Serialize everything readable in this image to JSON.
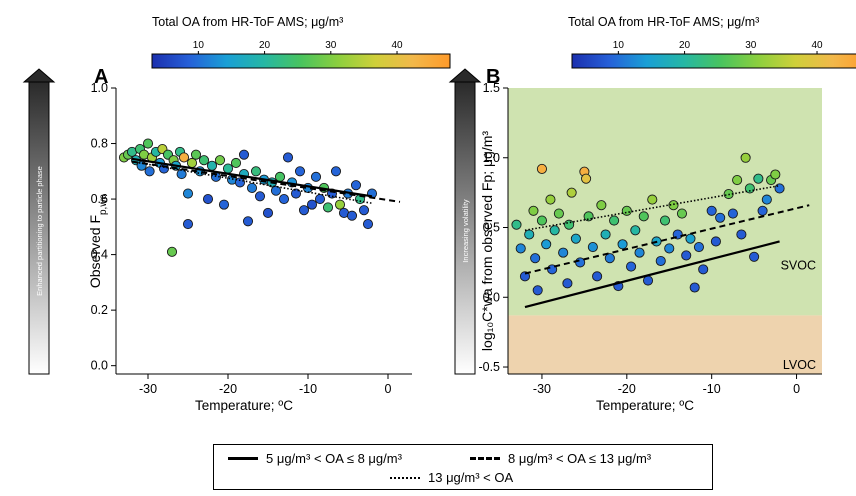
{
  "colorbar_title": "Total OA from HR-ToF AMS; μg/m³",
  "colorbar_ticks": [
    10,
    20,
    30,
    40
  ],
  "colorbar_range": [
    3,
    48
  ],
  "colorbar_colors": [
    "#1b2fae",
    "#2660d8",
    "#1a9fd6",
    "#25b7a5",
    "#49c45e",
    "#8ccf3e",
    "#cfcf3a",
    "#f2b84a",
    "#ff9a2a"
  ],
  "panel_b_colors": {
    "svoc_fill": "#cfe3b0",
    "lvoc_fill": "#eed3ae"
  },
  "legend": {
    "solid_label": "5 μg/m³ < OA ≤ 8 μg/m³",
    "dashed_label": "8 μg/m³ < OA ≤ 13 μg/m³",
    "dotdash_label": "13 μg/m³ < OA"
  },
  "chart_data": [
    {
      "type": "scatter",
      "panel_label": "A",
      "title": "",
      "xlabel": "Temperature; ºC",
      "ylabel": "Observed F",
      "ylabel_sub": "p,wa",
      "arrow_label": "Enhanced partitioning to particle phase",
      "xlim": [
        -34,
        3
      ],
      "ylim": [
        -0.03,
        1.0
      ],
      "xticks": [
        -30,
        -20,
        -10,
        0
      ],
      "yticks": [
        0.0,
        0.2,
        0.4,
        0.6,
        0.8,
        1.0
      ],
      "ytick_labels": [
        "0.0",
        "0.2",
        "0.4",
        "0.6",
        "0.8",
        "1.0"
      ],
      "lines": [
        {
          "style": "solid",
          "x": [
            -32,
            -2
          ],
          "y": [
            0.745,
            0.61
          ]
        },
        {
          "style": "dashed",
          "x": [
            -32,
            1.5
          ],
          "y": [
            0.735,
            0.59
          ]
        },
        {
          "style": "dotdash",
          "x": [
            -32,
            -2
          ],
          "y": [
            0.735,
            0.585
          ]
        }
      ],
      "points": [
        {
          "x": -33,
          "y": 0.75,
          "c": 30
        },
        {
          "x": -32.5,
          "y": 0.76,
          "c": 28
        },
        {
          "x": -32,
          "y": 0.77,
          "c": 22
        },
        {
          "x": -31.5,
          "y": 0.74,
          "c": 18
        },
        {
          "x": -31,
          "y": 0.78,
          "c": 24
        },
        {
          "x": -30.8,
          "y": 0.72,
          "c": 12
        },
        {
          "x": -30.5,
          "y": 0.76,
          "c": 30
        },
        {
          "x": -30,
          "y": 0.8,
          "c": 26
        },
        {
          "x": -29.8,
          "y": 0.7,
          "c": 10
        },
        {
          "x": -29.5,
          "y": 0.75,
          "c": 33
        },
        {
          "x": -29,
          "y": 0.77,
          "c": 20
        },
        {
          "x": -28.5,
          "y": 0.73,
          "c": 14
        },
        {
          "x": -28.2,
          "y": 0.78,
          "c": 35
        },
        {
          "x": -28,
          "y": 0.71,
          "c": 9
        },
        {
          "x": -27.5,
          "y": 0.76,
          "c": 25
        },
        {
          "x": -27,
          "y": 0.41,
          "c": 28
        },
        {
          "x": -26.8,
          "y": 0.74,
          "c": 30
        },
        {
          "x": -26.5,
          "y": 0.72,
          "c": 16
        },
        {
          "x": -26,
          "y": 0.77,
          "c": 22
        },
        {
          "x": -25.8,
          "y": 0.69,
          "c": 11
        },
        {
          "x": -25.5,
          "y": 0.75,
          "c": 44
        },
        {
          "x": -25,
          "y": 0.62,
          "c": 12
        },
        {
          "x": -25,
          "y": 0.51,
          "c": 8
        },
        {
          "x": -24.5,
          "y": 0.73,
          "c": 33
        },
        {
          "x": -24,
          "y": 0.76,
          "c": 27
        },
        {
          "x": -23.5,
          "y": 0.7,
          "c": 13
        },
        {
          "x": -23,
          "y": 0.74,
          "c": 24
        },
        {
          "x": -22.5,
          "y": 0.6,
          "c": 7
        },
        {
          "x": -22,
          "y": 0.72,
          "c": 19
        },
        {
          "x": -21.5,
          "y": 0.68,
          "c": 10
        },
        {
          "x": -21,
          "y": 0.74,
          "c": 29
        },
        {
          "x": -20.5,
          "y": 0.58,
          "c": 9
        },
        {
          "x": -20,
          "y": 0.71,
          "c": 21
        },
        {
          "x": -19.5,
          "y": 0.67,
          "c": 12
        },
        {
          "x": -19,
          "y": 0.73,
          "c": 26
        },
        {
          "x": -18.5,
          "y": 0.66,
          "c": 9
        },
        {
          "x": -18,
          "y": 0.76,
          "c": 8
        },
        {
          "x": -18,
          "y": 0.69,
          "c": 17
        },
        {
          "x": -17.5,
          "y": 0.52,
          "c": 8
        },
        {
          "x": -17,
          "y": 0.64,
          "c": 11
        },
        {
          "x": -16.5,
          "y": 0.7,
          "c": 23
        },
        {
          "x": -16,
          "y": 0.61,
          "c": 8
        },
        {
          "x": -15.5,
          "y": 0.67,
          "c": 14
        },
        {
          "x": -15,
          "y": 0.55,
          "c": 7
        },
        {
          "x": -14.5,
          "y": 0.66,
          "c": 18
        },
        {
          "x": -14,
          "y": 0.63,
          "c": 10
        },
        {
          "x": -13.5,
          "y": 0.68,
          "c": 25
        },
        {
          "x": -13,
          "y": 0.6,
          "c": 9
        },
        {
          "x": -12.5,
          "y": 0.75,
          "c": 8
        },
        {
          "x": -12,
          "y": 0.66,
          "c": 13
        },
        {
          "x": -11.5,
          "y": 0.62,
          "c": 8
        },
        {
          "x": -11,
          "y": 0.7,
          "c": 9
        },
        {
          "x": -10.5,
          "y": 0.56,
          "c": 8
        },
        {
          "x": -10,
          "y": 0.64,
          "c": 12
        },
        {
          "x": -9.5,
          "y": 0.58,
          "c": 7
        },
        {
          "x": -9,
          "y": 0.68,
          "c": 10
        },
        {
          "x": -8.5,
          "y": 0.6,
          "c": 8
        },
        {
          "x": -8,
          "y": 0.64,
          "c": 26
        },
        {
          "x": -7.5,
          "y": 0.57,
          "c": 24
        },
        {
          "x": -7,
          "y": 0.62,
          "c": 8
        },
        {
          "x": -6.5,
          "y": 0.7,
          "c": 9
        },
        {
          "x": -6,
          "y": 0.58,
          "c": 32
        },
        {
          "x": -5.5,
          "y": 0.55,
          "c": 8
        },
        {
          "x": -5,
          "y": 0.62,
          "c": 11
        },
        {
          "x": -4.5,
          "y": 0.54,
          "c": 8
        },
        {
          "x": -4,
          "y": 0.65,
          "c": 9
        },
        {
          "x": -3.5,
          "y": 0.6,
          "c": 22
        },
        {
          "x": -3,
          "y": 0.56,
          "c": 8
        },
        {
          "x": -2.5,
          "y": 0.51,
          "c": 8
        },
        {
          "x": -2,
          "y": 0.62,
          "c": 10
        }
      ]
    },
    {
      "type": "scatter",
      "panel_label": "B",
      "title": "",
      "xlabel": "Temperature; ºC",
      "ylabel": "log₁₀C*wa from observed Fp; μg/m³",
      "arrow_label": "Increasing volatility",
      "region_labels": [
        "SVOC",
        "LVOC"
      ],
      "region_boundary_y": -0.13,
      "xlim": [
        -34,
        3
      ],
      "ylim": [
        -0.55,
        1.5
      ],
      "xticks": [
        -30,
        -20,
        -10,
        0
      ],
      "yticks": [
        -0.5,
        0.0,
        0.5,
        1.0,
        1.5
      ],
      "ytick_labels": [
        "-0.5",
        "0.0",
        "0.5",
        "1.0",
        "1.5"
      ],
      "lines": [
        {
          "style": "solid",
          "x": [
            -32,
            -2
          ],
          "y": [
            -0.07,
            0.4
          ]
        },
        {
          "style": "dashed",
          "x": [
            -32,
            1.5
          ],
          "y": [
            0.17,
            0.66
          ]
        },
        {
          "style": "dotdash",
          "x": [
            -32,
            -2
          ],
          "y": [
            0.48,
            0.8
          ]
        }
      ],
      "points": [
        {
          "x": -33,
          "y": 0.52,
          "c": 22
        },
        {
          "x": -32.5,
          "y": 0.35,
          "c": 12
        },
        {
          "x": -32,
          "y": 0.15,
          "c": 8
        },
        {
          "x": -31.5,
          "y": 0.45,
          "c": 18
        },
        {
          "x": -31,
          "y": 0.62,
          "c": 30
        },
        {
          "x": -30.8,
          "y": 0.28,
          "c": 10
        },
        {
          "x": -30.5,
          "y": 0.05,
          "c": 8
        },
        {
          "x": -30,
          "y": 0.92,
          "c": 44
        },
        {
          "x": -30,
          "y": 0.55,
          "c": 26
        },
        {
          "x": -29.5,
          "y": 0.38,
          "c": 14
        },
        {
          "x": -29,
          "y": 0.7,
          "c": 32
        },
        {
          "x": -28.8,
          "y": 0.2,
          "c": 9
        },
        {
          "x": -28.5,
          "y": 0.48,
          "c": 20
        },
        {
          "x": -28,
          "y": 0.6,
          "c": 28
        },
        {
          "x": -27.5,
          "y": 0.32,
          "c": 12
        },
        {
          "x": -27,
          "y": 0.1,
          "c": 8
        },
        {
          "x": -26.8,
          "y": 0.52,
          "c": 24
        },
        {
          "x": -26.5,
          "y": 0.75,
          "c": 34
        },
        {
          "x": -26,
          "y": 0.42,
          "c": 16
        },
        {
          "x": -25.5,
          "y": 0.25,
          "c": 10
        },
        {
          "x": -25,
          "y": 0.9,
          "c": 44
        },
        {
          "x": -24.8,
          "y": 0.85,
          "c": 40
        },
        {
          "x": -24.5,
          "y": 0.58,
          "c": 26
        },
        {
          "x": -24,
          "y": 0.36,
          "c": 13
        },
        {
          "x": -23.5,
          "y": 0.15,
          "c": 8
        },
        {
          "x": -23,
          "y": 0.66,
          "c": 30
        },
        {
          "x": -22.5,
          "y": 0.45,
          "c": 18
        },
        {
          "x": -22,
          "y": 0.28,
          "c": 11
        },
        {
          "x": -21.5,
          "y": 0.55,
          "c": 24
        },
        {
          "x": -21,
          "y": 0.08,
          "c": 8
        },
        {
          "x": -20.5,
          "y": 0.38,
          "c": 14
        },
        {
          "x": -20,
          "y": 0.62,
          "c": 28
        },
        {
          "x": -19.5,
          "y": 0.22,
          "c": 9
        },
        {
          "x": -19,
          "y": 0.48,
          "c": 20
        },
        {
          "x": -18.5,
          "y": 0.32,
          "c": 12
        },
        {
          "x": -18,
          "y": 0.58,
          "c": 26
        },
        {
          "x": -17.5,
          "y": 0.12,
          "c": 8
        },
        {
          "x": -17,
          "y": 0.7,
          "c": 32
        },
        {
          "x": -16.5,
          "y": 0.4,
          "c": 16
        },
        {
          "x": -16,
          "y": 0.26,
          "c": 10
        },
        {
          "x": -15.5,
          "y": 0.55,
          "c": 24
        },
        {
          "x": -15,
          "y": 0.35,
          "c": 12
        },
        {
          "x": -14.5,
          "y": 0.66,
          "c": 30
        },
        {
          "x": -14,
          "y": 0.45,
          "c": 9
        },
        {
          "x": -13.5,
          "y": 0.6,
          "c": 28
        },
        {
          "x": -13,
          "y": 0.3,
          "c": 8
        },
        {
          "x": -12.5,
          "y": 0.42,
          "c": 15
        },
        {
          "x": -12,
          "y": 0.07,
          "c": 8
        },
        {
          "x": -11.5,
          "y": 0.36,
          "c": 10
        },
        {
          "x": -11,
          "y": 0.2,
          "c": 8
        },
        {
          "x": -10,
          "y": 0.62,
          "c": 9
        },
        {
          "x": -9.5,
          "y": 0.4,
          "c": 8
        },
        {
          "x": -9,
          "y": 0.57,
          "c": 10
        },
        {
          "x": -8,
          "y": 0.74,
          "c": 28
        },
        {
          "x": -7.5,
          "y": 0.6,
          "c": 9
        },
        {
          "x": -7,
          "y": 0.84,
          "c": 30
        },
        {
          "x": -6.5,
          "y": 0.45,
          "c": 8
        },
        {
          "x": -6,
          "y": 1.0,
          "c": 32
        },
        {
          "x": -5.5,
          "y": 0.78,
          "c": 24
        },
        {
          "x": -5,
          "y": 0.29,
          "c": 8
        },
        {
          "x": -4.5,
          "y": 0.85,
          "c": 22
        },
        {
          "x": -4,
          "y": 0.62,
          "c": 9
        },
        {
          "x": -3.5,
          "y": 0.7,
          "c": 12
        },
        {
          "x": -3,
          "y": 0.84,
          "c": 28
        },
        {
          "x": -2.5,
          "y": 0.88,
          "c": 30
        },
        {
          "x": -2,
          "y": 0.78,
          "c": 10
        }
      ]
    }
  ]
}
